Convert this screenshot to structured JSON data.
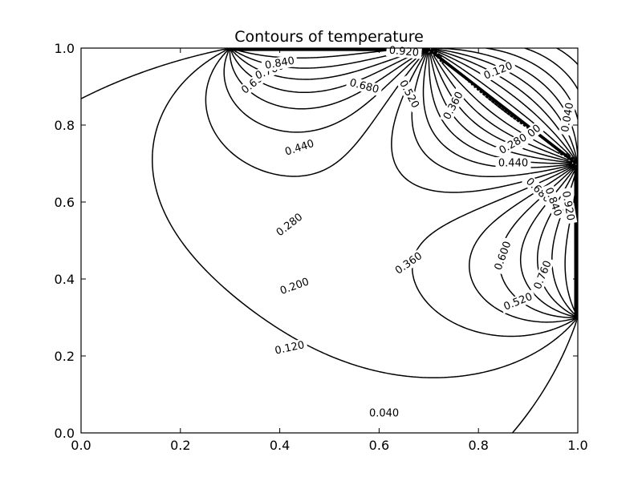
{
  "chart_data": {
    "type": "contour",
    "title": "Contours of temperature",
    "xlabel": "",
    "ylabel": "",
    "xlim": [
      0.0,
      1.0
    ],
    "ylim": [
      0.0,
      1.0
    ],
    "x_ticks": [
      "0.0",
      "0.2",
      "0.4",
      "0.6",
      "0.8",
      "1.0"
    ],
    "y_ticks": [
      "0.0",
      "0.2",
      "0.4",
      "0.6",
      "0.8",
      "1.0"
    ],
    "grid": false,
    "line_color": "#000000",
    "contour_levels": [
      0.04,
      0.08,
      0.12,
      0.16,
      0.2,
      0.24,
      0.28,
      0.32,
      0.36,
      0.4,
      0.44,
      0.48,
      0.52,
      0.56,
      0.6,
      0.64,
      0.68,
      0.72,
      0.76,
      0.8,
      0.84,
      0.88,
      0.92,
      0.96
    ],
    "sources": [
      {
        "x": 0.3,
        "y": 1.0,
        "value": 1.0
      },
      {
        "x": 0.7,
        "y": 1.0,
        "value": 0.0
      },
      {
        "x": 1.0,
        "y": 0.7,
        "value": 1.0
      },
      {
        "x": 1.0,
        "y": 0.3,
        "value": 0.0
      }
    ],
    "contour_labels": [
      {
        "text": "0.040",
        "x": 0.61,
        "y": 0.05,
        "angle": 0
      },
      {
        "text": "0.120",
        "x": 0.42,
        "y": 0.22,
        "angle": 12
      },
      {
        "text": "0.200",
        "x": 0.43,
        "y": 0.38,
        "angle": 20
      },
      {
        "text": "0.280",
        "x": 0.42,
        "y": 0.54,
        "angle": 38
      },
      {
        "text": "0.360",
        "x": 0.66,
        "y": 0.44,
        "angle": 35
      },
      {
        "text": "0.440",
        "x": 0.44,
        "y": 0.74,
        "angle": 18
      },
      {
        "text": "0.520",
        "x": 0.66,
        "y": 0.88,
        "angle": -62
      },
      {
        "text": "0.600",
        "x": 0.35,
        "y": 0.91,
        "angle": 38
      },
      {
        "text": "0.680",
        "x": 0.57,
        "y": 0.9,
        "angle": -15
      },
      {
        "text": "0.760",
        "x": 0.38,
        "y": 0.94,
        "angle": 22
      },
      {
        "text": "0.840",
        "x": 0.4,
        "y": 0.96,
        "angle": 10
      },
      {
        "text": "0.920",
        "x": 0.65,
        "y": 0.99,
        "angle": -5
      },
      {
        "text": "0.360",
        "x": 0.75,
        "y": 0.85,
        "angle": 62
      },
      {
        "text": "0.120",
        "x": 0.84,
        "y": 0.94,
        "angle": 22
      },
      {
        "text": "0.040",
        "x": 0.98,
        "y": 0.82,
        "angle": 80
      },
      {
        "text": "0.200",
        "x": 0.9,
        "y": 0.77,
        "angle": 40
      },
      {
        "text": "0.280",
        "x": 0.87,
        "y": 0.75,
        "angle": 30
      },
      {
        "text": "0.440",
        "x": 0.87,
        "y": 0.7,
        "angle": 0
      },
      {
        "text": "0.680",
        "x": 0.92,
        "y": 0.63,
        "angle": -45
      },
      {
        "text": "0.840",
        "x": 0.95,
        "y": 0.6,
        "angle": -70
      },
      {
        "text": "0.920",
        "x": 0.98,
        "y": 0.59,
        "angle": -80
      },
      {
        "text": "0.600",
        "x": 0.85,
        "y": 0.46,
        "angle": 70
      },
      {
        "text": "0.760",
        "x": 0.93,
        "y": 0.41,
        "angle": 68
      },
      {
        "text": "0.520",
        "x": 0.88,
        "y": 0.34,
        "angle": 22
      }
    ]
  }
}
